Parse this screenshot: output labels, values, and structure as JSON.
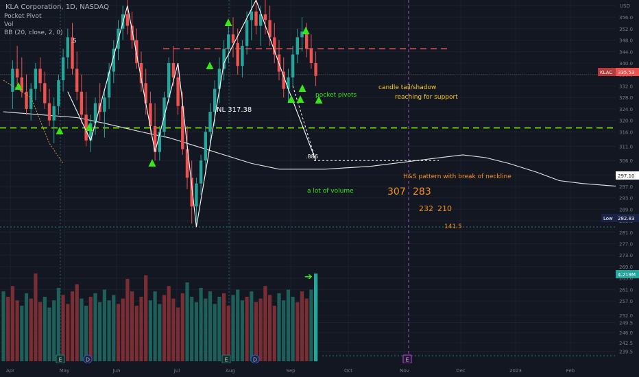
{
  "header": {
    "symbol_line": "KLA Corporation, 1D, NASDAQ",
    "indicators": [
      "Pocket Pivot",
      "Vol",
      "BB (20, close, 2, 0)"
    ]
  },
  "colors": {
    "background": "#131722",
    "grid": "#1e2230",
    "up": "#26a69a",
    "down": "#ef5350",
    "neckline": "#7cfc00",
    "resistance": "#f05a5a",
    "marker": "#39e619",
    "annotation": "#f6c90e",
    "vertical_marker": "#b94bd6",
    "bb_basis": "#e6e6e6"
  },
  "chart_data": {
    "type": "candlestick",
    "title": "KLA Corporation, 1D, NASDAQ",
    "currency": "USD",
    "ylim": [
      236,
      362
    ],
    "x_labels": [
      "Apr",
      "May",
      "Jun",
      "Jul",
      "Aug",
      "Sep",
      "Oct",
      "Nov",
      "Dec",
      "2023",
      "Feb"
    ],
    "y_ticks": [
      239.5,
      242.5,
      246.0,
      249.5,
      252.0,
      257.0,
      261.0,
      265.0,
      269.0,
      273.0,
      277.0,
      281.0,
      285.0,
      289.0,
      293.0,
      297.0,
      301.0,
      306.0,
      311.0,
      316.0,
      320.0,
      324.0,
      328.0,
      332.0,
      336.0,
      340.0,
      344.0,
      348.0,
      352.0,
      356.0,
      360.0
    ],
    "price_tags": [
      {
        "label": "KLAC",
        "value": "335.53",
        "color": "#ef5350"
      },
      {
        "label": "",
        "value": "297.10",
        "color": "#ffffff"
      },
      {
        "label": "Low",
        "value": "282.83",
        "color": "#131722"
      },
      {
        "label": "",
        "value": "4.219M",
        "color": "#26a69a"
      }
    ],
    "neckline": {
      "label": "NL 317.38",
      "value": 317.38
    },
    "resistance_level": 345.0,
    "fib_level": {
      "label": ".886",
      "value": 306.0
    },
    "fib_label_upper": ".5",
    "low_level": 282.83,
    "event_markers": [
      "E",
      "D",
      "E",
      "D",
      "E"
    ],
    "annotations": {
      "pocket_pivots": "pocket pivots",
      "candle_tail": "candle tail/shadow",
      "reaching_support": "reaching for support",
      "hs_pattern": "H&S pattern with break of neckline",
      "volume_note": "a lot of volume",
      "target_1": "307",
      "target_2": "283",
      "target_3": "232",
      "target_4": "210",
      "target_5": "141.5"
    },
    "bb_basis": [
      [
        0,
        323
      ],
      [
        8,
        322
      ],
      [
        16,
        321
      ],
      [
        22,
        319
      ],
      [
        30,
        316
      ],
      [
        36,
        314
      ],
      [
        42,
        311
      ],
      [
        48,
        308
      ],
      [
        54,
        305
      ],
      [
        60,
        303
      ],
      [
        70,
        303
      ],
      [
        80,
        304
      ],
      [
        90,
        306
      ],
      [
        100,
        308
      ],
      [
        105,
        307
      ],
      [
        110,
        305
      ],
      [
        116,
        302
      ],
      [
        121,
        299
      ],
      [
        126,
        298
      ],
      [
        134,
        297
      ],
      [
        142,
        298
      ],
      [
        148,
        296
      ],
      [
        156,
        293
      ],
      [
        162,
        291
      ],
      [
        170,
        291
      ],
      [
        178,
        292
      ],
      [
        186,
        293
      ],
      [
        190,
        293
      ],
      [
        196,
        295
      ],
      [
        202,
        297
      ],
      [
        208,
        299
      ]
    ],
    "candles": [
      [
        2,
        330,
        341,
        324,
        338
      ],
      [
        3,
        338,
        346,
        332,
        335
      ],
      [
        4,
        335,
        342,
        328,
        330
      ],
      [
        5,
        330,
        336,
        322,
        324
      ],
      [
        6,
        324,
        333,
        320,
        331
      ],
      [
        7,
        331,
        340,
        327,
        338
      ],
      [
        8,
        338,
        342,
        330,
        333
      ],
      [
        9,
        333,
        337,
        324,
        326
      ],
      [
        10,
        326,
        331,
        318,
        320
      ],
      [
        11,
        320,
        328,
        312,
        325
      ],
      [
        12,
        325,
        336,
        322,
        334
      ],
      [
        13,
        334,
        345,
        330,
        342
      ],
      [
        14,
        342,
        352,
        338,
        349
      ],
      [
        15,
        349,
        354,
        336,
        338
      ],
      [
        16,
        338,
        344,
        327,
        330
      ],
      [
        17,
        330,
        336,
        319,
        322
      ],
      [
        18,
        322,
        330,
        311,
        313
      ],
      [
        19,
        313,
        322,
        309,
        319
      ],
      [
        20,
        319,
        328,
        315,
        326
      ],
      [
        21,
        326,
        333,
        320,
        323
      ],
      [
        22,
        323,
        331,
        314,
        328
      ],
      [
        23,
        328,
        340,
        324,
        337
      ],
      [
        24,
        337,
        348,
        333,
        345
      ],
      [
        25,
        345,
        355,
        341,
        352
      ],
      [
        26,
        352,
        360,
        348,
        357
      ],
      [
        27,
        357,
        362,
        350,
        353
      ],
      [
        28,
        353,
        358,
        345,
        348
      ],
      [
        29,
        348,
        352,
        338,
        340
      ],
      [
        30,
        340,
        344,
        330,
        333
      ],
      [
        31,
        333,
        338,
        322,
        326
      ],
      [
        32,
        326,
        330,
        315,
        318
      ],
      [
        33,
        318,
        326,
        306,
        309
      ],
      [
        34,
        309,
        318,
        306,
        316
      ],
      [
        35,
        316,
        330,
        314,
        328
      ],
      [
        36,
        328,
        342,
        326,
        340
      ],
      [
        37,
        340,
        346,
        332,
        335
      ],
      [
        38,
        335,
        340,
        322,
        325
      ],
      [
        39,
        325,
        330,
        308,
        310
      ],
      [
        40,
        310,
        318,
        296,
        300
      ],
      [
        41,
        300,
        306,
        284,
        290
      ],
      [
        42,
        290,
        300,
        282.83,
        298
      ],
      [
        43,
        298,
        308,
        294,
        306
      ],
      [
        44,
        306,
        318,
        302,
        316
      ],
      [
        45,
        316,
        326,
        312,
        323
      ],
      [
        46,
        323,
        334,
        318,
        331
      ],
      [
        47,
        331,
        342,
        326,
        338
      ],
      [
        48,
        338,
        348,
        334,
        345
      ],
      [
        49,
        345,
        354,
        340,
        350
      ],
      [
        50,
        350,
        356,
        342,
        347
      ],
      [
        51,
        347,
        352,
        336,
        339
      ],
      [
        52,
        339,
        348,
        335,
        346
      ],
      [
        53,
        346,
        358,
        343,
        355
      ],
      [
        54,
        355,
        362,
        348,
        358
      ],
      [
        55,
        358,
        362,
        350,
        353
      ],
      [
        56,
        353,
        360,
        346,
        357
      ],
      [
        57,
        357,
        362,
        350,
        355
      ],
      [
        58,
        355,
        360,
        346,
        349
      ],
      [
        59,
        349,
        354,
        340,
        343
      ],
      [
        60,
        343,
        348,
        334,
        337
      ],
      [
        61,
        337,
        342,
        328,
        331
      ],
      [
        62,
        331,
        338,
        326,
        335
      ],
      [
        63,
        335,
        346,
        332,
        343
      ],
      [
        64,
        343,
        352,
        340,
        349
      ],
      [
        65,
        349,
        356,
        344,
        351
      ],
      [
        66,
        351,
        354,
        342,
        345
      ],
      [
        67,
        345,
        350,
        338,
        340
      ],
      [
        68,
        340,
        344,
        332,
        335.53
      ]
    ],
    "volume": [
      3.9,
      3.6,
      4.2,
      3.4,
      3.1,
      3.8,
      3.5,
      4.9,
      3.3,
      3.6,
      3.0,
      3.4,
      4.1,
      3.7,
      3.2,
      3.9,
      4.3,
      3.5,
      3.1,
      3.6,
      3.8,
      3.3,
      4.0,
      3.4,
      3.7,
      3.2,
      3.5,
      4.6,
      3.9,
      3.1,
      3.6,
      4.8,
      3.4,
      3.9,
      3.2,
      3.7,
      4.2,
      3.5,
      3.0,
      3.8,
      4.4,
      3.6,
      3.3,
      4.1,
      3.5,
      3.9,
      3.2,
      3.6,
      3.8,
      3.1,
      3.7,
      4.0,
      3.4,
      3.6,
      3.9,
      3.3,
      3.5,
      4.2,
      3.7,
      3.1,
      3.8,
      3.4,
      4.0,
      3.6,
      3.3,
      3.9,
      3.5,
      4.0,
      4.219
    ]
  }
}
